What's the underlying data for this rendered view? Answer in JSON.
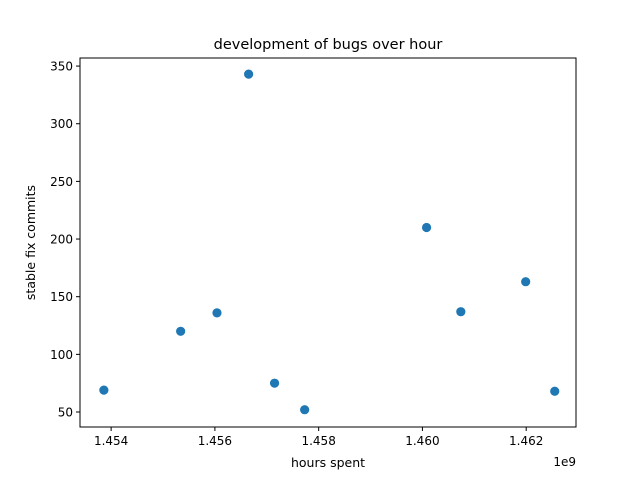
{
  "chart_data": {
    "type": "scatter",
    "title": "development of bugs over hour",
    "xlabel": "hours spent",
    "ylabel": "stable fix commits",
    "x_offset_label": "1e9",
    "x_scale": 1000000000,
    "xlim": [
      1453400000,
      1462960000
    ],
    "ylim": [
      37,
      357
    ],
    "x_ticks": [
      1454000000,
      1456000000,
      1458000000,
      1460000000,
      1462000000
    ],
    "x_tick_labels": [
      "1.454",
      "1.456",
      "1.458",
      "1.460",
      "1.462"
    ],
    "y_ticks": [
      50,
      100,
      150,
      200,
      250,
      300,
      350
    ],
    "y_tick_labels": [
      "50",
      "100",
      "150",
      "200",
      "250",
      "300",
      "350"
    ],
    "grid": false,
    "marker_color": "#1f77b4",
    "points": [
      {
        "x": 1453860000,
        "y": 69
      },
      {
        "x": 1455340000,
        "y": 120
      },
      {
        "x": 1456040000,
        "y": 136
      },
      {
        "x": 1456650000,
        "y": 343
      },
      {
        "x": 1457150000,
        "y": 75
      },
      {
        "x": 1457730000,
        "y": 52
      },
      {
        "x": 1460080000,
        "y": 210
      },
      {
        "x": 1460740000,
        "y": 137
      },
      {
        "x": 1461990000,
        "y": 163
      },
      {
        "x": 1462550000,
        "y": 68
      }
    ]
  }
}
